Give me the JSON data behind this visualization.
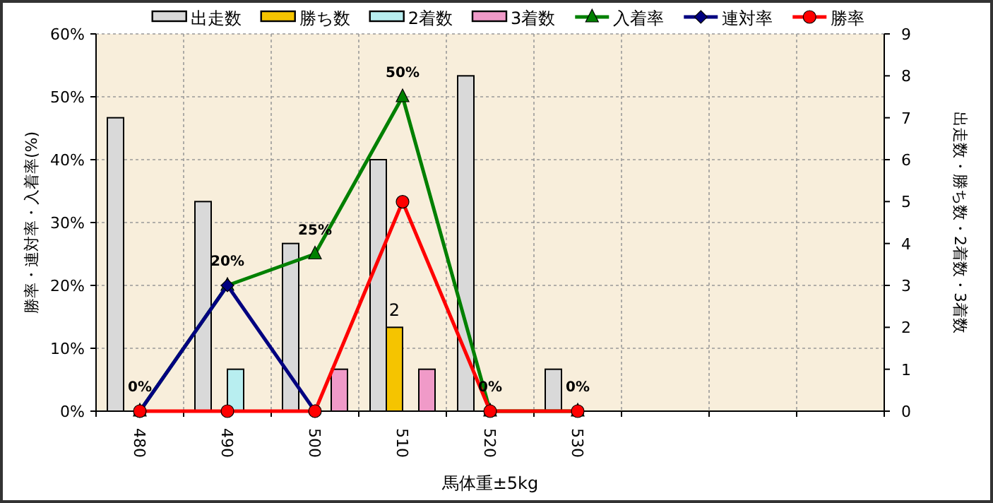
{
  "chart_data": {
    "type": "bar",
    "xlabel": "馬体重±5kg",
    "ylabel": "勝率・連対率・入着率(%)",
    "y2label": "出走数・勝ち数・2着数・3着数",
    "categories": [
      "480",
      "490",
      "500",
      "510",
      "520",
      "530",
      null,
      null,
      null
    ],
    "series": [
      {
        "name": "出走数",
        "axis": "y2",
        "color": "#d9d9d9",
        "values": [
          7,
          5,
          4,
          6,
          8,
          1,
          null,
          null,
          null
        ]
      },
      {
        "name": "勝ち数",
        "type": "bar",
        "axis": "y2",
        "color": "#f5c400",
        "values": [
          0,
          0,
          0,
          2,
          0,
          0,
          null,
          null,
          null
        ],
        "value_labels": [
          null,
          null,
          null,
          "2",
          null,
          null,
          null,
          null,
          null
        ]
      },
      {
        "name": "2着数",
        "type": "bar",
        "axis": "y2",
        "color": "#b8eef0",
        "values": [
          0,
          1,
          0,
          0,
          0,
          0,
          null,
          null,
          null
        ]
      },
      {
        "name": "3着数",
        "type": "bar",
        "axis": "y2",
        "color": "#f09ac8",
        "values": [
          0,
          0,
          1,
          1,
          0,
          0,
          null,
          null,
          null
        ]
      },
      {
        "name": "入着率",
        "type": "line",
        "marker": "triangle",
        "color": "#008000",
        "values": [
          0,
          20,
          25,
          50,
          0,
          0,
          null,
          null,
          null
        ],
        "value_labels": [
          "0%",
          "20%",
          "25%",
          "50%",
          "0%",
          "0%",
          null,
          null,
          null
        ]
      },
      {
        "name": "連対率",
        "type": "line",
        "marker": "diamond",
        "color": "#000080",
        "values": [
          0,
          20,
          0,
          null,
          null,
          null,
          null,
          null,
          null
        ]
      },
      {
        "name": "勝率",
        "type": "line",
        "marker": "circle",
        "color": "#ff0000",
        "values": [
          0,
          0,
          0,
          33.3,
          0,
          0,
          null,
          null,
          null
        ]
      }
    ],
    "ylim": [
      0,
      60
    ],
    "yticks": [
      {
        "value": 0,
        "label": "0%"
      },
      {
        "value": 10,
        "label": "10%"
      },
      {
        "value": 20,
        "label": "20%"
      },
      {
        "value": 30,
        "label": "30%"
      },
      {
        "value": 40,
        "label": "40%"
      },
      {
        "value": 50,
        "label": "50%"
      },
      {
        "value": 60,
        "label": "60%"
      }
    ],
    "y2lim": [
      0,
      9
    ],
    "y2ticks": [
      0,
      1,
      2,
      3,
      4,
      5,
      6,
      7,
      8,
      9
    ],
    "grid": true,
    "legend": "top"
  }
}
